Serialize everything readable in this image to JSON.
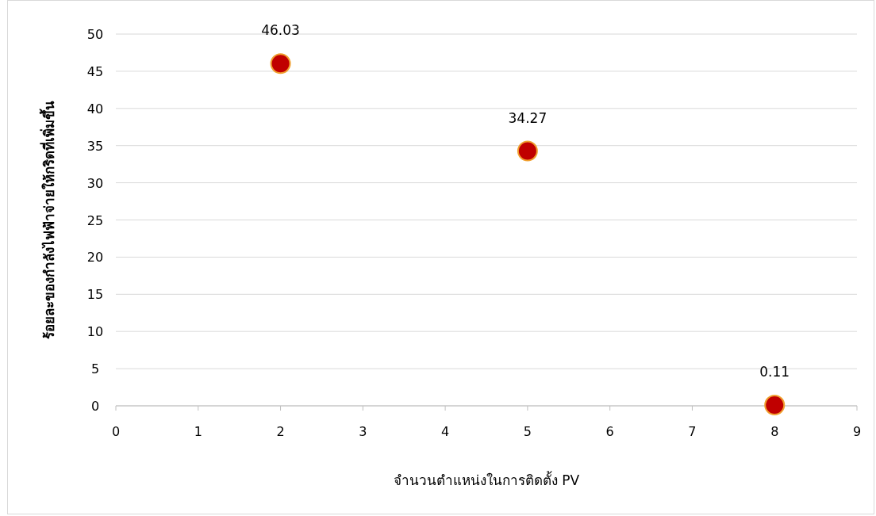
{
  "chart_data": {
    "type": "scatter",
    "xlabel": "จำนวนตำแหน่งในการติดตั้ง PV",
    "ylabel": "ร้อยละของกำลังไฟฟ้าจ่ายให้กริดที่เพิ่มขึ้น",
    "x": [
      2,
      5,
      8
    ],
    "values": [
      46.03,
      34.27,
      0.11
    ],
    "color": "#c00000",
    "marker": "circle",
    "data_labels": true,
    "grid": "y",
    "xlim": [
      0,
      9
    ],
    "ylim": [
      0,
      50
    ],
    "xticks": [
      0,
      1,
      2,
      3,
      4,
      5,
      6,
      7,
      8,
      9
    ],
    "yticks": [
      0,
      5,
      10,
      15,
      20,
      25,
      30,
      35,
      40,
      45,
      50
    ]
  }
}
